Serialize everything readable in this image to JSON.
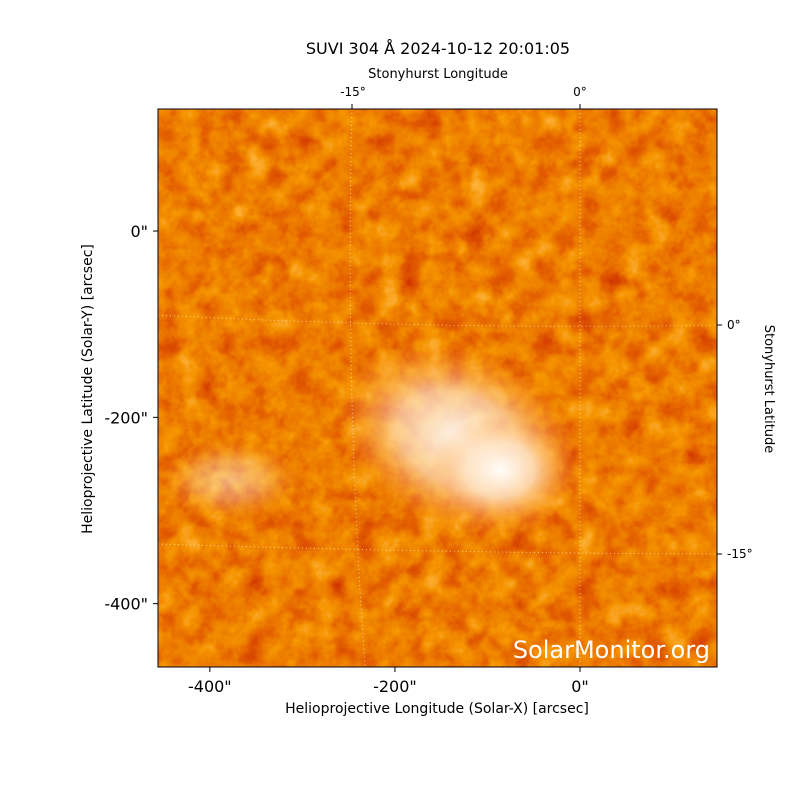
{
  "chart_data": {
    "type": "image",
    "title": "SUVI 304 Å 2024-10-12 20:01:05",
    "x_label": "Helioprojective Longitude (Solar-X) [arcsec]",
    "y_label": "Helioprojective Latitude (Solar-Y) [arcsec]",
    "top_axis_label": "Stonyhurst Longitude",
    "right_axis_label": "Stonyhurst Latitude",
    "top_ticks": [
      "-15°",
      "0°"
    ],
    "right_ticks": [
      "0°",
      "-15°"
    ],
    "watermark": "SolarMonitor.org",
    "xlim": [
      -456,
      148
    ],
    "ylim": [
      -468,
      131
    ],
    "xticks": [
      {
        "value": -400,
        "label": "-400\""
      },
      {
        "value": -200,
        "label": "-200\""
      },
      {
        "value": 0,
        "label": "0\""
      }
    ],
    "yticks": [
      {
        "value": 0,
        "label": "0\""
      },
      {
        "value": -200,
        "label": "-200\""
      },
      {
        "value": -400,
        "label": "-400\""
      }
    ]
  }
}
